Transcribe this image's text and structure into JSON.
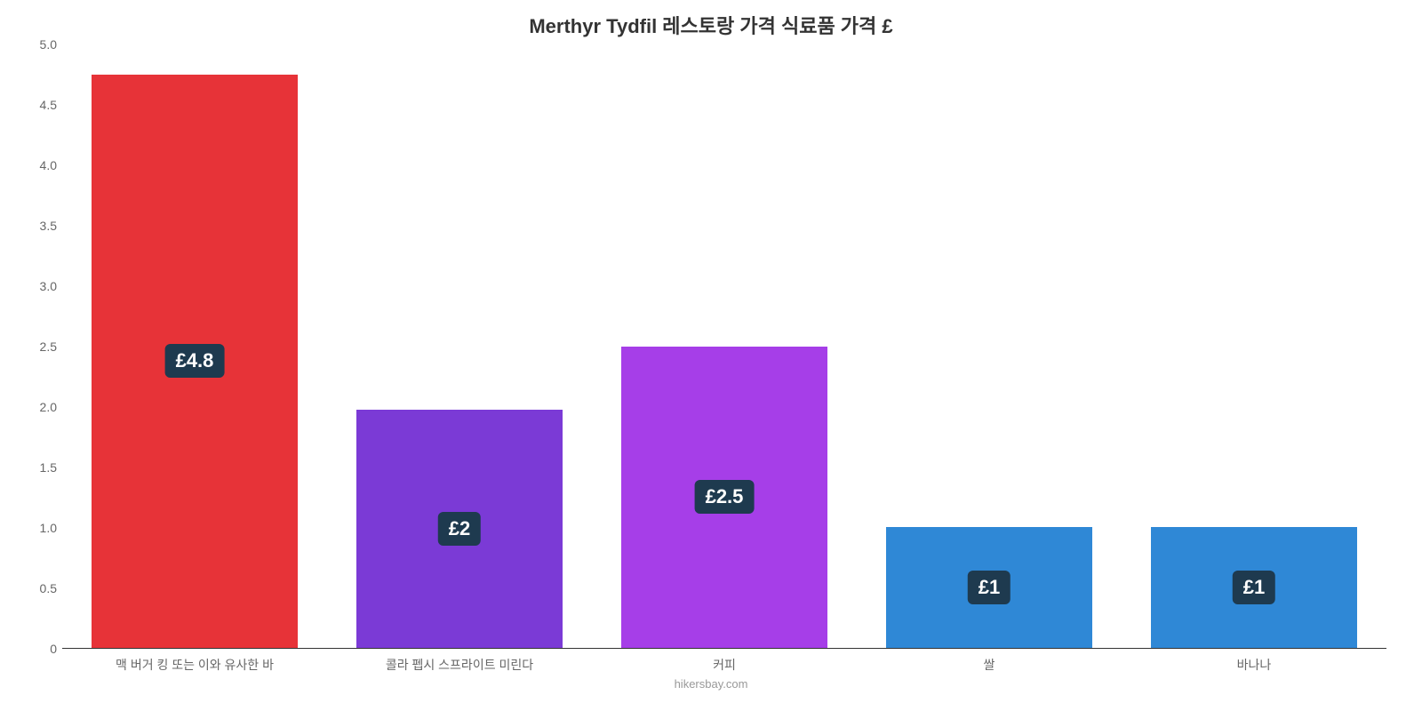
{
  "chart": {
    "type": "bar",
    "title": "Merthyr Tydfil 레스토랑 가격 식료품 가격 £",
    "title_fontsize": 22,
    "footer": "hikersbay.com",
    "background_color": "#ffffff",
    "ylim": [
      0,
      5
    ],
    "ytick_step": 0.5,
    "yticks": [
      "0",
      "0.5",
      "1.0",
      "1.5",
      "2.0",
      "2.5",
      "3.0",
      "3.5",
      "4.0",
      "4.5",
      "5.0"
    ],
    "axis_color": "#333333",
    "tick_label_color": "#666666",
    "tick_label_fontsize": 14,
    "bar_width_ratio": 0.78,
    "badge_bg": "#1e3a4f",
    "badge_text_color": "#ffffff",
    "badge_fontsize": 22,
    "categories": [
      "맥 버거 킹 또는 이와 유사한 바",
      "콜라 펩시 스프라이트 미린다",
      "커피",
      "쌀",
      "바나나"
    ],
    "values": [
      4.75,
      1.97,
      2.5,
      1.0,
      1.0
    ],
    "value_labels": [
      "£4.8",
      "£2",
      "£2.5",
      "£1",
      "£1"
    ],
    "bar_colors": [
      "#e73338",
      "#7b3ad6",
      "#a63ee8",
      "#2f88d6",
      "#2f88d6"
    ]
  }
}
